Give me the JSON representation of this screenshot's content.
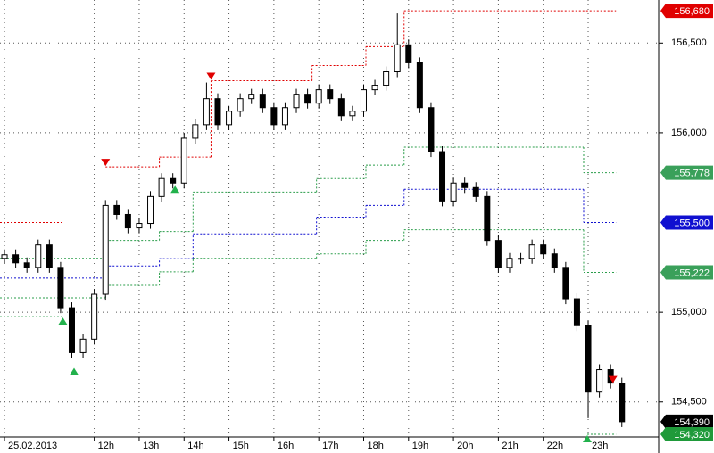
{
  "chart_data": {
    "type": "candlestick",
    "xlim": [
      9.9,
      24.57
    ],
    "ylim": [
      154305,
      156740
    ],
    "xticks": [
      {
        "value": 10,
        "label": "25.02.2013"
      },
      {
        "value": 12,
        "label": "12h"
      },
      {
        "value": 13,
        "label": "13h"
      },
      {
        "value": 14,
        "label": "14h"
      },
      {
        "value": 15,
        "label": "15h"
      },
      {
        "value": 16,
        "label": "16h"
      },
      {
        "value": 17,
        "label": "17h"
      },
      {
        "value": 18,
        "label": "18h"
      },
      {
        "value": 19,
        "label": "19h"
      },
      {
        "value": 20,
        "label": "20h"
      },
      {
        "value": 21,
        "label": "21h"
      },
      {
        "value": 22,
        "label": "22h"
      },
      {
        "value": 23,
        "label": "23h"
      }
    ],
    "yticks": [
      {
        "value": 154500,
        "label": "154,500"
      },
      {
        "value": 155000,
        "label": "155,000"
      },
      {
        "value": 156000,
        "label": "156,000"
      },
      {
        "value": 156500,
        "label": "156,500"
      }
    ],
    "grid": true,
    "candles": {
      "time": [
        10.0,
        10.25,
        10.5,
        10.75,
        11.0,
        11.25,
        11.5,
        11.75,
        12.0,
        12.25,
        12.5,
        12.75,
        13.0,
        13.25,
        13.5,
        13.75,
        14.0,
        14.25,
        14.5,
        14.75,
        15.0,
        15.25,
        15.5,
        15.75,
        16.0,
        16.25,
        16.5,
        16.75,
        17.0,
        17.25,
        17.5,
        17.75,
        18.0,
        18.25,
        18.5,
        18.75,
        19.0,
        19.25,
        19.5,
        19.75,
        20.0,
        20.25,
        20.5,
        20.75,
        21.0,
        21.25,
        21.5,
        21.75,
        22.0,
        22.25,
        22.5,
        22.75,
        23.0,
        23.25,
        23.5,
        23.75
      ],
      "open": [
        155300,
        155320,
        155275,
        155250,
        155375,
        155250,
        155025,
        154775,
        154850,
        155100,
        155595,
        155545,
        155470,
        155495,
        155645,
        155745,
        155720,
        155970,
        156045,
        156190,
        156045,
        156120,
        156190,
        156215,
        156140,
        156045,
        156140,
        156215,
        156165,
        156240,
        156190,
        156095,
        156120,
        156240,
        156265,
        156340,
        156490,
        156390,
        156140,
        155895,
        155620,
        155720,
        155695,
        155645,
        155400,
        155250,
        155300,
        155300,
        155375,
        155325,
        155250,
        155075,
        154925,
        154555,
        154680,
        154605
      ],
      "high": [
        155350,
        155350,
        155305,
        155405,
        155405,
        155280,
        155055,
        154880,
        155130,
        155625,
        155625,
        155575,
        155525,
        155675,
        155775,
        155775,
        156000,
        156075,
        156280,
        156220,
        156150,
        156220,
        156245,
        156245,
        156170,
        156170,
        156245,
        156245,
        156270,
        156270,
        156220,
        156150,
        156270,
        156295,
        156370,
        156665,
        156520,
        156420,
        156170,
        155925,
        155750,
        155750,
        155725,
        155675,
        155430,
        155330,
        155330,
        155405,
        155405,
        155355,
        155280,
        155105,
        154955,
        154710,
        154710,
        154635
      ],
      "low": [
        155270,
        155245,
        155220,
        155220,
        155220,
        154995,
        154745,
        154745,
        154820,
        155070,
        155515,
        155440,
        155440,
        155465,
        155615,
        155690,
        155690,
        155940,
        156015,
        156015,
        156015,
        156090,
        156160,
        156110,
        156015,
        156015,
        156110,
        156135,
        156135,
        156160,
        156065,
        156065,
        156090,
        156210,
        156235,
        156310,
        156360,
        156110,
        155865,
        155590,
        155590,
        155665,
        155615,
        155370,
        155220,
        155220,
        155270,
        155270,
        155295,
        155220,
        155045,
        154895,
        154410,
        154525,
        154575,
        154360
      ],
      "close": [
        155320,
        155275,
        155250,
        155375,
        155250,
        155025,
        154775,
        154850,
        155100,
        155595,
        155545,
        155470,
        155495,
        155645,
        155745,
        155720,
        155970,
        156045,
        156190,
        156045,
        156120,
        156190,
        156215,
        156140,
        156045,
        156140,
        156215,
        156165,
        156240,
        156190,
        156095,
        156120,
        156240,
        156265,
        156340,
        156490,
        156390,
        156140,
        155895,
        155620,
        155720,
        155695,
        155645,
        155400,
        155250,
        155300,
        155300,
        155375,
        155325,
        155250,
        155075,
        154925,
        154555,
        154680,
        154605,
        154390
      ]
    },
    "levels": [
      {
        "color": "#e00000",
        "x": [
          9.9,
          11.3,
          12.25,
          13.45,
          14.6,
          16.85,
          18.05,
          18.9,
          23.62
        ],
        "values": [
          155500,
          null,
          155810,
          155865,
          156290,
          156375,
          156480,
          156680,
          156680
        ]
      },
      {
        "color": "#2a9d4a",
        "x": [
          9.9,
          12.25,
          13.45,
          14.2,
          16.95,
          18.05,
          18.9,
          22.9,
          23.62
        ],
        "values": [
          155300,
          155400,
          155450,
          155670,
          155745,
          155820,
          155920,
          155778,
          155778
        ]
      },
      {
        "color": "#1010d0",
        "x": [
          9.9,
          12.25,
          13.45,
          14.2,
          16.95,
          18.05,
          18.9,
          22.9,
          23.62
        ],
        "values": [
          155190,
          155258,
          155298,
          155437,
          155530,
          155595,
          155685,
          155500,
          155500
        ]
      },
      {
        "color": "#2a9d4a",
        "x": [
          9.9,
          12.25,
          13.45,
          14.2,
          16.95,
          18.05,
          18.9,
          22.9,
          23.62
        ],
        "values": [
          155080,
          155150,
          155225,
          155300,
          155325,
          155400,
          155460,
          155222,
          155222
        ]
      },
      {
        "color": "#2a9d4a",
        "x": [
          9.9,
          11.3,
          11.55,
          22.82,
          22.98,
          23.62
        ],
        "values": [
          154975,
          null,
          154695,
          null,
          154320,
          154320
        ]
      }
    ],
    "signals": {
      "sell": {
        "color": "#e00000",
        "x": [
          12.25,
          14.6,
          23.55
        ],
        "values": [
          155810,
          156290,
          154600
        ]
      },
      "buy": {
        "color": "#22b14c",
        "x": [
          11.3,
          11.55,
          13.8,
          22.98
        ],
        "values": [
          154975,
          154695,
          155710,
          154320
        ]
      }
    },
    "price_labels": [
      {
        "value": 156680,
        "label": "156,680",
        "color": "#e00000"
      },
      {
        "value": 155778,
        "label": "155,778",
        "color": "#3aa05a"
      },
      {
        "value": 155500,
        "label": "155,500",
        "color": "#1010d0"
      },
      {
        "value": 155222,
        "label": "155,222",
        "color": "#3aa05a"
      },
      {
        "value": 154390,
        "label": "154,390",
        "color": "#000000"
      },
      {
        "value": 154320,
        "label": "154,320",
        "color": "#1f9a3a"
      }
    ]
  }
}
